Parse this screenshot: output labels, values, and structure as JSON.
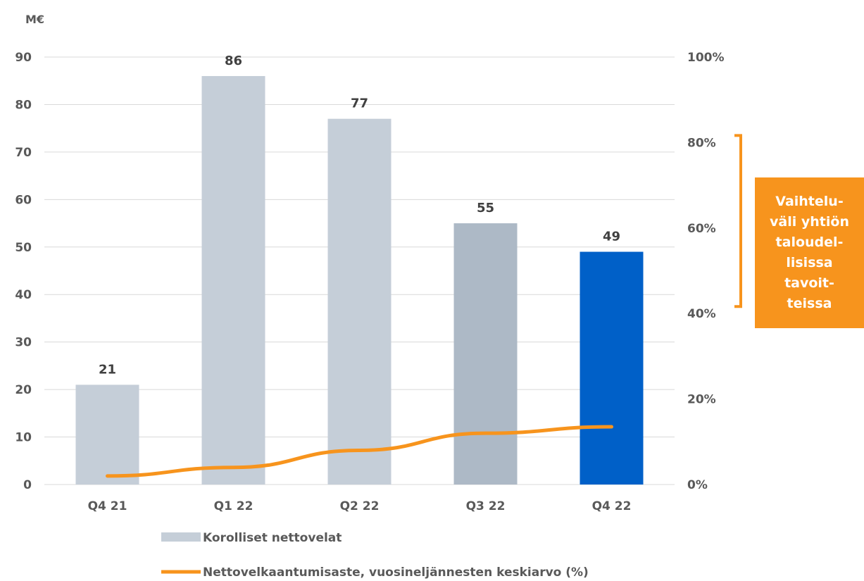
{
  "chart_data": {
    "type": "bar",
    "categories": [
      "Q4 21",
      "Q1 22",
      "Q2 22",
      "Q3 22",
      "Q4 22"
    ],
    "series": [
      {
        "name": "Korolliset nettovelat",
        "type": "bar",
        "axis": "left",
        "values": [
          21,
          86,
          77,
          55,
          49
        ],
        "data_labels": [
          "21",
          "86",
          "77",
          "55",
          "49"
        ],
        "colors": [
          "#c5ced8",
          "#c5ced8",
          "#c5ced8",
          "#adb9c6",
          "#0060c8"
        ]
      },
      {
        "name": "Nettovelkaantumisaste, vuosineljännesten keskiarvo (%)",
        "type": "line",
        "axis": "right",
        "values": [
          2,
          4,
          8,
          12,
          13.5
        ],
        "color": "#f7941d"
      }
    ],
    "y_left": {
      "unit": "M€",
      "ylim": [
        0,
        90
      ],
      "ticks": [
        "0",
        "10",
        "20",
        "30",
        "40",
        "50",
        "60",
        "70",
        "80",
        "90"
      ]
    },
    "y_right": {
      "ylim": [
        0,
        100
      ],
      "ticks": [
        "0%",
        "20%",
        "40%",
        "60%",
        "80%",
        "100%"
      ]
    },
    "target_range": {
      "axis": "right",
      "from": 40,
      "to": 80,
      "color": "#f7941d",
      "label_lines": [
        "Vaihtelu-",
        "väli yhtiön",
        "taloudel-",
        "lisissa",
        "tavoit-",
        "teissa"
      ]
    },
    "grid": true,
    "legend_position": "bottom"
  }
}
